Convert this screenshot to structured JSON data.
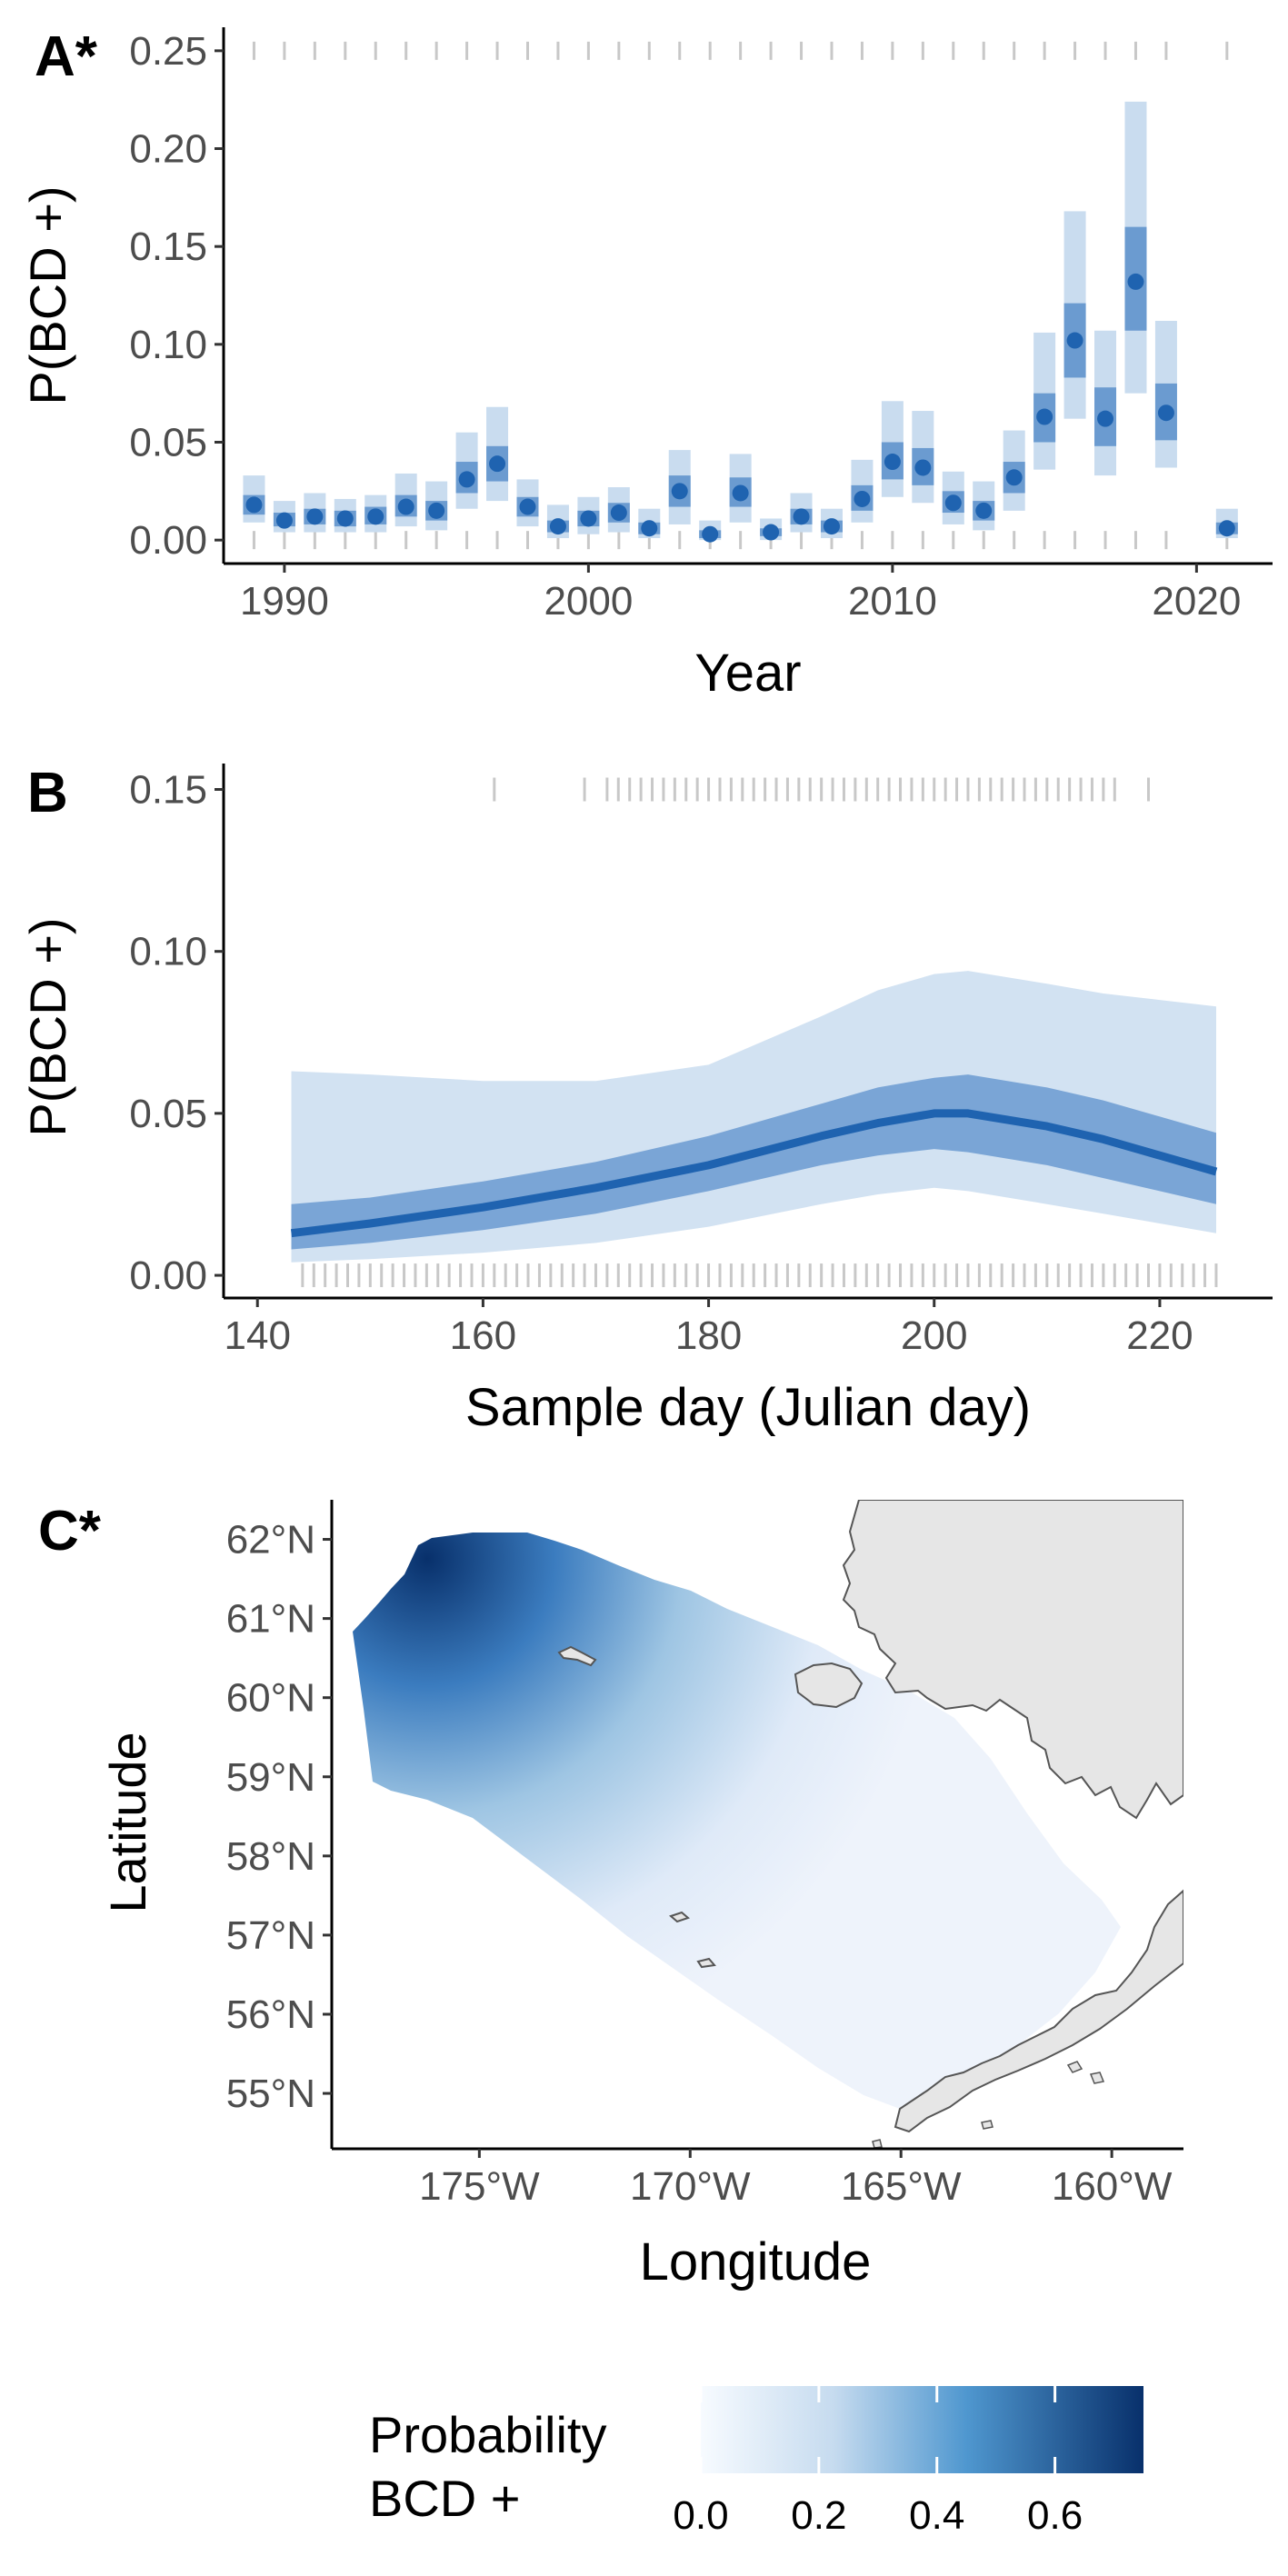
{
  "panel_labels": {
    "a": "A*",
    "b": "B",
    "c": "C*"
  },
  "colors": {
    "point": "#1f63b0",
    "ci_inner": "#6b9bd0",
    "ci_outer": "#c9dcef",
    "band_outer": "#d2e2f2",
    "band_inner": "#7aa5d6",
    "line": "#1f63b0",
    "rug": "#c8c8c8",
    "axis": "#000000",
    "land": "#e6e6e6",
    "coast": "#555555",
    "grad_low": "#f7fbff",
    "grad_high": "#08306b"
  },
  "chart_data": [
    {
      "type": "scatter",
      "panel": "A*",
      "xlabel": "Year",
      "ylabel": "P(BCD +)",
      "xlim": [
        1988,
        2022.5
      ],
      "ylim": [
        -0.012,
        0.262
      ],
      "x_ticks": [
        1990,
        2000,
        2010,
        2020
      ],
      "y_ticks": [
        0.0,
        0.05,
        0.1,
        0.15,
        0.2,
        0.25
      ],
      "x_tick_labels": [
        "1990",
        "2000",
        "2010",
        "2020"
      ],
      "y_tick_labels": [
        "0.00",
        "0.05",
        "0.10",
        "0.15",
        "0.20",
        "0.25"
      ],
      "points": [
        {
          "x": 1989,
          "y": 0.018,
          "lo50": 0.013,
          "hi50": 0.023,
          "lo95": 0.009,
          "hi95": 0.033
        },
        {
          "x": 1990,
          "y": 0.01,
          "lo50": 0.007,
          "hi50": 0.014,
          "lo95": 0.004,
          "hi95": 0.02
        },
        {
          "x": 1991,
          "y": 0.012,
          "lo50": 0.008,
          "hi50": 0.016,
          "lo95": 0.004,
          "hi95": 0.024
        },
        {
          "x": 1992,
          "y": 0.011,
          "lo50": 0.007,
          "hi50": 0.015,
          "lo95": 0.004,
          "hi95": 0.021
        },
        {
          "x": 1993,
          "y": 0.012,
          "lo50": 0.008,
          "hi50": 0.017,
          "lo95": 0.004,
          "hi95": 0.023
        },
        {
          "x": 1994,
          "y": 0.017,
          "lo50": 0.012,
          "hi50": 0.023,
          "lo95": 0.007,
          "hi95": 0.034
        },
        {
          "x": 1995,
          "y": 0.015,
          "lo50": 0.01,
          "hi50": 0.02,
          "lo95": 0.005,
          "hi95": 0.03
        },
        {
          "x": 1996,
          "y": 0.031,
          "lo50": 0.024,
          "hi50": 0.04,
          "lo95": 0.016,
          "hi95": 0.055
        },
        {
          "x": 1997,
          "y": 0.039,
          "lo50": 0.03,
          "hi50": 0.048,
          "lo95": 0.02,
          "hi95": 0.068
        },
        {
          "x": 1998,
          "y": 0.017,
          "lo50": 0.012,
          "hi50": 0.022,
          "lo95": 0.007,
          "hi95": 0.031
        },
        {
          "x": 1999,
          "y": 0.007,
          "lo50": 0.004,
          "hi50": 0.01,
          "lo95": 0.001,
          "hi95": 0.018
        },
        {
          "x": 2000,
          "y": 0.011,
          "lo50": 0.007,
          "hi50": 0.015,
          "lo95": 0.003,
          "hi95": 0.022
        },
        {
          "x": 2001,
          "y": 0.014,
          "lo50": 0.009,
          "hi50": 0.019,
          "lo95": 0.004,
          "hi95": 0.027
        },
        {
          "x": 2002,
          "y": 0.006,
          "lo50": 0.003,
          "hi50": 0.009,
          "lo95": 0.001,
          "hi95": 0.016
        },
        {
          "x": 2003,
          "y": 0.025,
          "lo50": 0.017,
          "hi50": 0.033,
          "lo95": 0.008,
          "hi95": 0.046
        },
        {
          "x": 2004,
          "y": 0.003,
          "lo50": 0.001,
          "hi50": 0.005,
          "lo95": 0.0,
          "hi95": 0.01
        },
        {
          "x": 2005,
          "y": 0.024,
          "lo50": 0.017,
          "hi50": 0.032,
          "lo95": 0.009,
          "hi95": 0.044
        },
        {
          "x": 2006,
          "y": 0.004,
          "lo50": 0.002,
          "hi50": 0.006,
          "lo95": 0.0,
          "hi95": 0.011
        },
        {
          "x": 2007,
          "y": 0.012,
          "lo50": 0.008,
          "hi50": 0.016,
          "lo95": 0.004,
          "hi95": 0.024
        },
        {
          "x": 2008,
          "y": 0.007,
          "lo50": 0.004,
          "hi50": 0.01,
          "lo95": 0.001,
          "hi95": 0.016
        },
        {
          "x": 2009,
          "y": 0.021,
          "lo50": 0.015,
          "hi50": 0.028,
          "lo95": 0.009,
          "hi95": 0.041
        },
        {
          "x": 2010,
          "y": 0.04,
          "lo50": 0.031,
          "hi50": 0.05,
          "lo95": 0.022,
          "hi95": 0.071
        },
        {
          "x": 2011,
          "y": 0.037,
          "lo50": 0.028,
          "hi50": 0.047,
          "lo95": 0.019,
          "hi95": 0.066
        },
        {
          "x": 2012,
          "y": 0.019,
          "lo50": 0.014,
          "hi50": 0.025,
          "lo95": 0.008,
          "hi95": 0.035
        },
        {
          "x": 2013,
          "y": 0.015,
          "lo50": 0.01,
          "hi50": 0.02,
          "lo95": 0.005,
          "hi95": 0.03
        },
        {
          "x": 2014,
          "y": 0.032,
          "lo50": 0.024,
          "hi50": 0.04,
          "lo95": 0.015,
          "hi95": 0.056
        },
        {
          "x": 2015,
          "y": 0.063,
          "lo50": 0.05,
          "hi50": 0.075,
          "lo95": 0.036,
          "hi95": 0.106
        },
        {
          "x": 2016,
          "y": 0.102,
          "lo50": 0.083,
          "hi50": 0.121,
          "lo95": 0.062,
          "hi95": 0.168
        },
        {
          "x": 2017,
          "y": 0.062,
          "lo50": 0.048,
          "hi50": 0.078,
          "lo95": 0.033,
          "hi95": 0.107
        },
        {
          "x": 2018,
          "y": 0.132,
          "lo50": 0.107,
          "hi50": 0.16,
          "lo95": 0.075,
          "hi95": 0.224
        },
        {
          "x": 2019,
          "y": 0.065,
          "lo50": 0.051,
          "hi50": 0.08,
          "lo95": 0.037,
          "hi95": 0.112
        },
        {
          "x": 2021,
          "y": 0.006,
          "lo50": 0.003,
          "hi50": 0.009,
          "lo95": 0.001,
          "hi95": 0.016
        }
      ],
      "rug_years": [
        1989,
        1990,
        1991,
        1992,
        1993,
        1994,
        1995,
        1996,
        1997,
        1998,
        1999,
        2000,
        2001,
        2002,
        2003,
        2004,
        2005,
        2006,
        2007,
        2008,
        2009,
        2010,
        2011,
        2012,
        2013,
        2014,
        2015,
        2016,
        2017,
        2018,
        2019,
        2021
      ]
    },
    {
      "type": "line",
      "panel": "B",
      "xlabel": "Sample day (Julian day)",
      "ylabel": "P(BCD +)",
      "xlim": [
        137,
        230
      ],
      "ylim": [
        -0.007,
        0.158
      ],
      "x_ticks": [
        140,
        160,
        180,
        200,
        220
      ],
      "y_ticks": [
        0.0,
        0.05,
        0.1,
        0.15
      ],
      "x_tick_labels": [
        "140",
        "160",
        "180",
        "200",
        "220"
      ],
      "y_tick_labels": [
        "0.00",
        "0.05",
        "0.10",
        "0.15"
      ],
      "x": [
        143,
        150,
        160,
        170,
        180,
        190,
        195,
        200,
        203,
        210,
        215,
        220,
        225
      ],
      "y": [
        0.013,
        0.016,
        0.021,
        0.027,
        0.034,
        0.043,
        0.047,
        0.05,
        0.05,
        0.046,
        0.042,
        0.037,
        0.032
      ],
      "lo50": [
        0.008,
        0.01,
        0.014,
        0.019,
        0.026,
        0.034,
        0.037,
        0.039,
        0.038,
        0.034,
        0.03,
        0.026,
        0.022
      ],
      "hi50": [
        0.022,
        0.024,
        0.029,
        0.035,
        0.043,
        0.053,
        0.058,
        0.061,
        0.062,
        0.058,
        0.054,
        0.049,
        0.044
      ],
      "lo95": [
        0.004,
        0.005,
        0.007,
        0.01,
        0.015,
        0.022,
        0.025,
        0.027,
        0.026,
        0.022,
        0.019,
        0.016,
        0.013
      ],
      "hi95": [
        0.063,
        0.062,
        0.06,
        0.06,
        0.065,
        0.08,
        0.088,
        0.093,
        0.094,
        0.09,
        0.087,
        0.085,
        0.083
      ],
      "rug_top": [
        161,
        169,
        171,
        172,
        173,
        174,
        175,
        176,
        177,
        178,
        179,
        180,
        181,
        182,
        183,
        184,
        185,
        186,
        187,
        188,
        189,
        190,
        191,
        192,
        193,
        194,
        195,
        196,
        197,
        198,
        199,
        200,
        201,
        202,
        203,
        204,
        205,
        206,
        207,
        208,
        209,
        210,
        211,
        212,
        213,
        214,
        215,
        216,
        219
      ],
      "rug_bottom": [
        144,
        145,
        146,
        147,
        148,
        149,
        150,
        151,
        152,
        153,
        154,
        155,
        156,
        157,
        158,
        159,
        160,
        161,
        162,
        163,
        164,
        165,
        166,
        167,
        168,
        169,
        170,
        171,
        172,
        173,
        174,
        175,
        176,
        177,
        178,
        179,
        180,
        181,
        182,
        183,
        184,
        185,
        186,
        187,
        188,
        189,
        190,
        191,
        192,
        193,
        194,
        195,
        196,
        197,
        198,
        199,
        200,
        201,
        202,
        203,
        204,
        205,
        206,
        207,
        208,
        209,
        210,
        211,
        212,
        213,
        214,
        215,
        216,
        217,
        218,
        219,
        220,
        221,
        222,
        223,
        224,
        225
      ]
    },
    {
      "type": "heatmap",
      "panel": "C*",
      "xlabel": "Longitude",
      "ylabel": "Latitude",
      "xlim": [
        -178.5,
        -158.3
      ],
      "ylim": [
        54.3,
        62.5
      ],
      "x_ticks": [
        -175,
        -170,
        -165,
        -160
      ],
      "y_ticks": [
        55,
        56,
        57,
        58,
        59,
        60,
        61,
        62
      ],
      "x_tick_labels": [
        "175°W",
        "170°W",
        "165°W",
        "160°W"
      ],
      "y_tick_labels": [
        "55°N",
        "56°N",
        "57°N",
        "58°N",
        "59°N",
        "60°N",
        "61°N",
        "62°N"
      ],
      "legend": {
        "title_line1": "Probability",
        "title_line2": "BCD +",
        "tick_values": [
          0.0,
          0.2,
          0.4,
          0.6
        ],
        "tick_labels": [
          "0.0",
          "0.2",
          "0.4",
          "0.6"
        ],
        "range": [
          0.0,
          0.75
        ]
      }
    }
  ]
}
